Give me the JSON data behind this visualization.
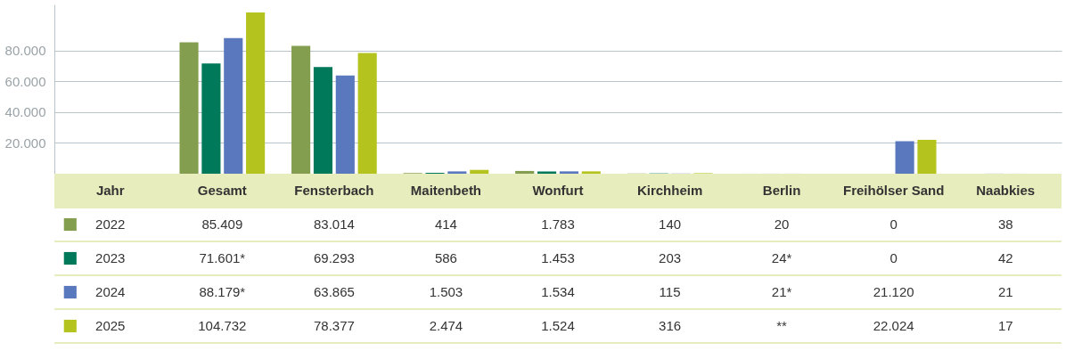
{
  "chart_data": {
    "type": "bar",
    "legend_title": "Jahr",
    "categories": [
      "Gesamt",
      "Fensterbach",
      "Maitenbeth",
      "Wonfurt",
      "Kirchheim",
      "Berlin",
      "Freihölser Sand",
      "Naabkies"
    ],
    "series": [
      {
        "name": "2022",
        "color": "#849e4f",
        "values": [
          85409,
          83014,
          414,
          1783,
          140,
          20,
          0,
          38
        ],
        "value_labels": [
          "85.409",
          "83.014",
          "414",
          "1.783",
          "140",
          "20",
          "0",
          "38"
        ]
      },
      {
        "name": "2023",
        "color": "#00785a",
        "values": [
          71601,
          69293,
          586,
          1453,
          203,
          24,
          0,
          42
        ],
        "value_labels": [
          "71.601*",
          "69.293",
          "586",
          "1.453",
          "203",
          "24*",
          "0",
          "42"
        ]
      },
      {
        "name": "2024",
        "color": "#5a78be",
        "values": [
          88179,
          63865,
          1503,
          1534,
          115,
          21,
          21120,
          21
        ],
        "value_labels": [
          "88.179*",
          "63.865",
          "1.503",
          "1.534",
          "115",
          "21*",
          "21.120",
          "21"
        ]
      },
      {
        "name": "2025",
        "color": "#b4c31e",
        "values": [
          104732,
          78377,
          2474,
          1524,
          316,
          null,
          22024,
          17
        ],
        "value_labels": [
          "104.732",
          "78.377",
          "2.474",
          "1.524",
          "316",
          "**",
          "22.024",
          "17"
        ]
      }
    ],
    "ylim": [
      0,
      110000
    ],
    "yticks": [
      {
        "value": 20000,
        "label": "20.000"
      },
      {
        "value": 40000,
        "label": "40.000"
      },
      {
        "value": 60000,
        "label": "60.000"
      },
      {
        "value": 80000,
        "label": "80.000"
      }
    ],
    "grid": "y",
    "tick_labels": "y",
    "legend": "bottom left"
  }
}
